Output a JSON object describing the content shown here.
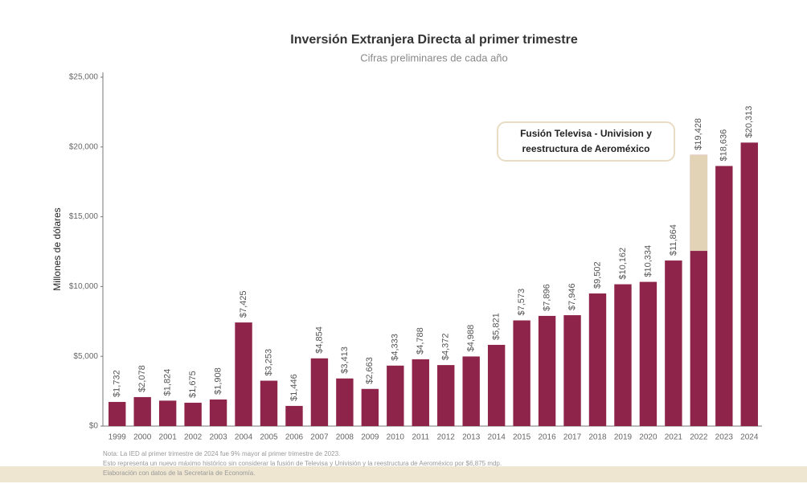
{
  "chart_data": {
    "type": "bar",
    "title": "Inversión Extranjera Directa al primer trimestre",
    "subtitle": "Cifras preliminares de cada año",
    "y_label": "Millones de dólares",
    "categories": [
      "1999",
      "2000",
      "2001",
      "2002",
      "2003",
      "2004",
      "2005",
      "2006",
      "2007",
      "2008",
      "2009",
      "2010",
      "2011",
      "2012",
      "2013",
      "2014",
      "2015",
      "2016",
      "2017",
      "2018",
      "2019",
      "2020",
      "2021",
      "2022",
      "2023",
      "2024"
    ],
    "values": [
      1732,
      2078,
      1824,
      1675,
      1908,
      7425,
      3253,
      1446,
      4854,
      3413,
      2663,
      4333,
      4788,
      4372,
      4988,
      5821,
      7573,
      7896,
      7946,
      9502,
      10162,
      10334,
      11864,
      19428,
      18636,
      20313
    ],
    "value_labels": [
      "$1,732",
      "$2,078",
      "$1,824",
      "$1,675",
      "$1,908",
      "$7,425",
      "$3,253",
      "$1,446",
      "$4,854",
      "$3,413",
      "$2,663",
      "$4,333",
      "$4,788",
      "$4,372",
      "$4,988",
      "$5,821",
      "$7,573",
      "$7,896",
      "$7,946",
      "$9,502",
      "$10,162",
      "$10,334",
      "$11,864",
      "$19,428",
      "$18,636",
      "$20,313"
    ],
    "color": "#8e2449",
    "highlight": {
      "category_index": 23,
      "value": 6875,
      "color": "#e2d3b6"
    },
    "annotation": [
      "Fusión Televisa - Univision y",
      "reestructura de Aeroméxico"
    ],
    "ylim": [
      0,
      25000
    ],
    "yticks": [
      {
        "value": 0,
        "label": "$0"
      },
      {
        "value": 5000,
        "label": "$5,000"
      },
      {
        "value": 10000,
        "label": "$10,000"
      },
      {
        "value": 15000,
        "label": "$15,000"
      },
      {
        "value": 20000,
        "label": "$20,000"
      },
      {
        "value": 25000,
        "label": "$25,000"
      }
    ],
    "notes": [
      "Nota: La IED al primer trimestre de 2024 fue 9% mayor al primer trimestre de 2023.",
      "Esto representa un nuevo máximo histórico sin considerar la fusión de Televisa y Univisión y la reestructura de Aeroméxico por $6,875 mdp.",
      "Elaboración con datos de la Secretaría de Economía."
    ]
  }
}
